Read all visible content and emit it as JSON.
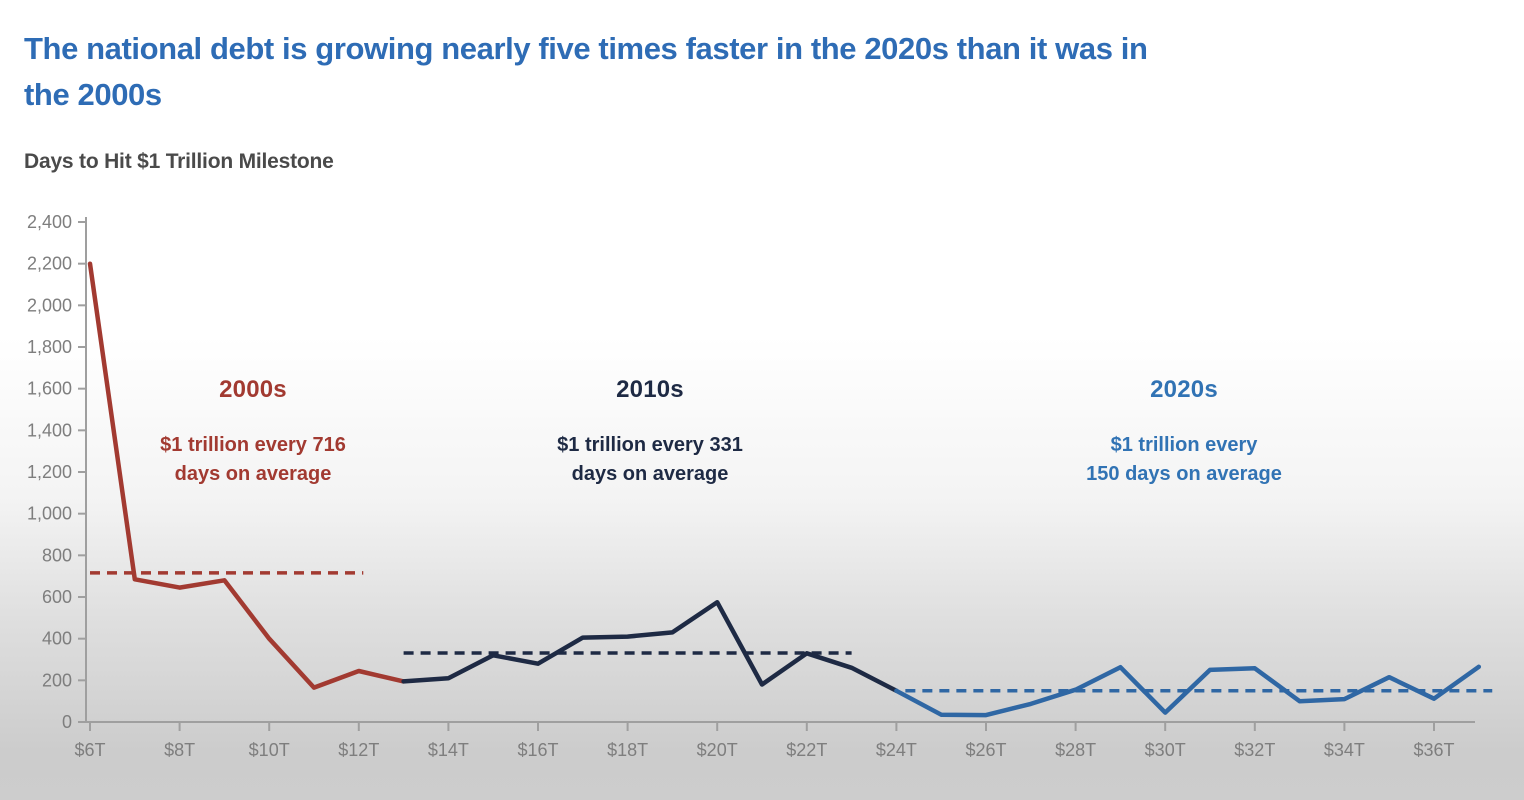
{
  "header": {
    "title": "The national debt is growing nearly five times faster in the 2020s than it was in\nthe 2000s",
    "subtitle": "Days to Hit $1 Trillion Milestone"
  },
  "colors": {
    "title_blue": "#2e6cb5",
    "subtitle_gray": "#4a4a4a",
    "axis_gray": "#9f9f9f",
    "tick_label_gray": "#7e7e7e",
    "red_2000s": "#a23a31",
    "navy_2010s": "#1e2a44",
    "blue_2020s": "#2f67a4",
    "blue_2020s_text": "#3173b4"
  },
  "annotations": {
    "a2000s": {
      "heading": "2000s",
      "body": "$1 trillion every 716\ndays on average"
    },
    "a2010s": {
      "heading": "2010s",
      "body": "$1 trillion every 331\ndays on average"
    },
    "a2020s": {
      "heading": "2020s",
      "body": "$1 trillion every\n150 days on average"
    }
  },
  "chart_data": {
    "type": "line",
    "title": "Days to Hit $1 Trillion Milestone",
    "grid": false,
    "legend_position": "none",
    "x_axis": {
      "unit": "$ trillions of national debt",
      "min": 6,
      "max": 37.3,
      "tick_values": [
        6,
        8,
        10,
        12,
        14,
        16,
        18,
        20,
        22,
        24,
        26,
        28,
        30,
        32,
        34,
        36
      ],
      "tick_labels": [
        "$6T",
        "$8T",
        "$10T",
        "$12T",
        "$14T",
        "$16T",
        "$18T",
        "$20T",
        "$22T",
        "$24T",
        "$26T",
        "$28T",
        "$30T",
        "$32T",
        "$34T",
        "$36T"
      ]
    },
    "y_axis": {
      "unit": "days to hit $1 trillion milestone",
      "min": 0,
      "max": 2400,
      "tick_values": [
        0,
        200,
        400,
        600,
        800,
        1000,
        1200,
        1400,
        1600,
        1800,
        2000,
        2200,
        2400
      ],
      "tick_labels": [
        "0",
        "200",
        "400",
        "600",
        "800",
        "1,000",
        "1,200",
        "1,400",
        "1,600",
        "1,800",
        "2,000",
        "2,200",
        "2,400"
      ]
    },
    "series": [
      {
        "name": "2000s",
        "color": "#a23a31",
        "points": [
          [
            6,
            2200
          ],
          [
            7,
            685
          ],
          [
            8,
            645
          ],
          [
            9,
            680
          ],
          [
            10,
            400
          ],
          [
            11,
            165
          ],
          [
            12,
            245
          ],
          [
            13,
            195
          ]
        ]
      },
      {
        "name": "2010s",
        "color": "#1e2a44",
        "points": [
          [
            13,
            195
          ],
          [
            14,
            210
          ],
          [
            15,
            320
          ],
          [
            16,
            280
          ],
          [
            17,
            405
          ],
          [
            18,
            410
          ],
          [
            19,
            430
          ],
          [
            20,
            575
          ],
          [
            21,
            180
          ],
          [
            22,
            330
          ],
          [
            23,
            260
          ],
          [
            24,
            150
          ]
        ]
      },
      {
        "name": "2020s",
        "color": "#2f67a4",
        "points": [
          [
            24,
            150
          ],
          [
            25,
            35
          ],
          [
            26,
            33
          ],
          [
            27,
            87
          ],
          [
            28,
            155
          ],
          [
            29,
            263
          ],
          [
            30,
            45
          ],
          [
            31,
            250
          ],
          [
            32,
            258
          ],
          [
            33,
            100
          ],
          [
            34,
            110
          ],
          [
            35,
            215
          ],
          [
            36,
            112
          ],
          [
            37,
            265
          ]
        ]
      }
    ],
    "average_lines": [
      {
        "label": "2000s average",
        "value": 716,
        "x_start": 6,
        "x_end": 12.1,
        "color": "#a23a31"
      },
      {
        "label": "2010s average",
        "value": 331,
        "x_start": 13,
        "x_end": 23,
        "color": "#1e2a44"
      },
      {
        "label": "2020s average",
        "value": 150,
        "x_start": 24.2,
        "x_end": 37.3,
        "color": "#2f67a4"
      }
    ]
  }
}
